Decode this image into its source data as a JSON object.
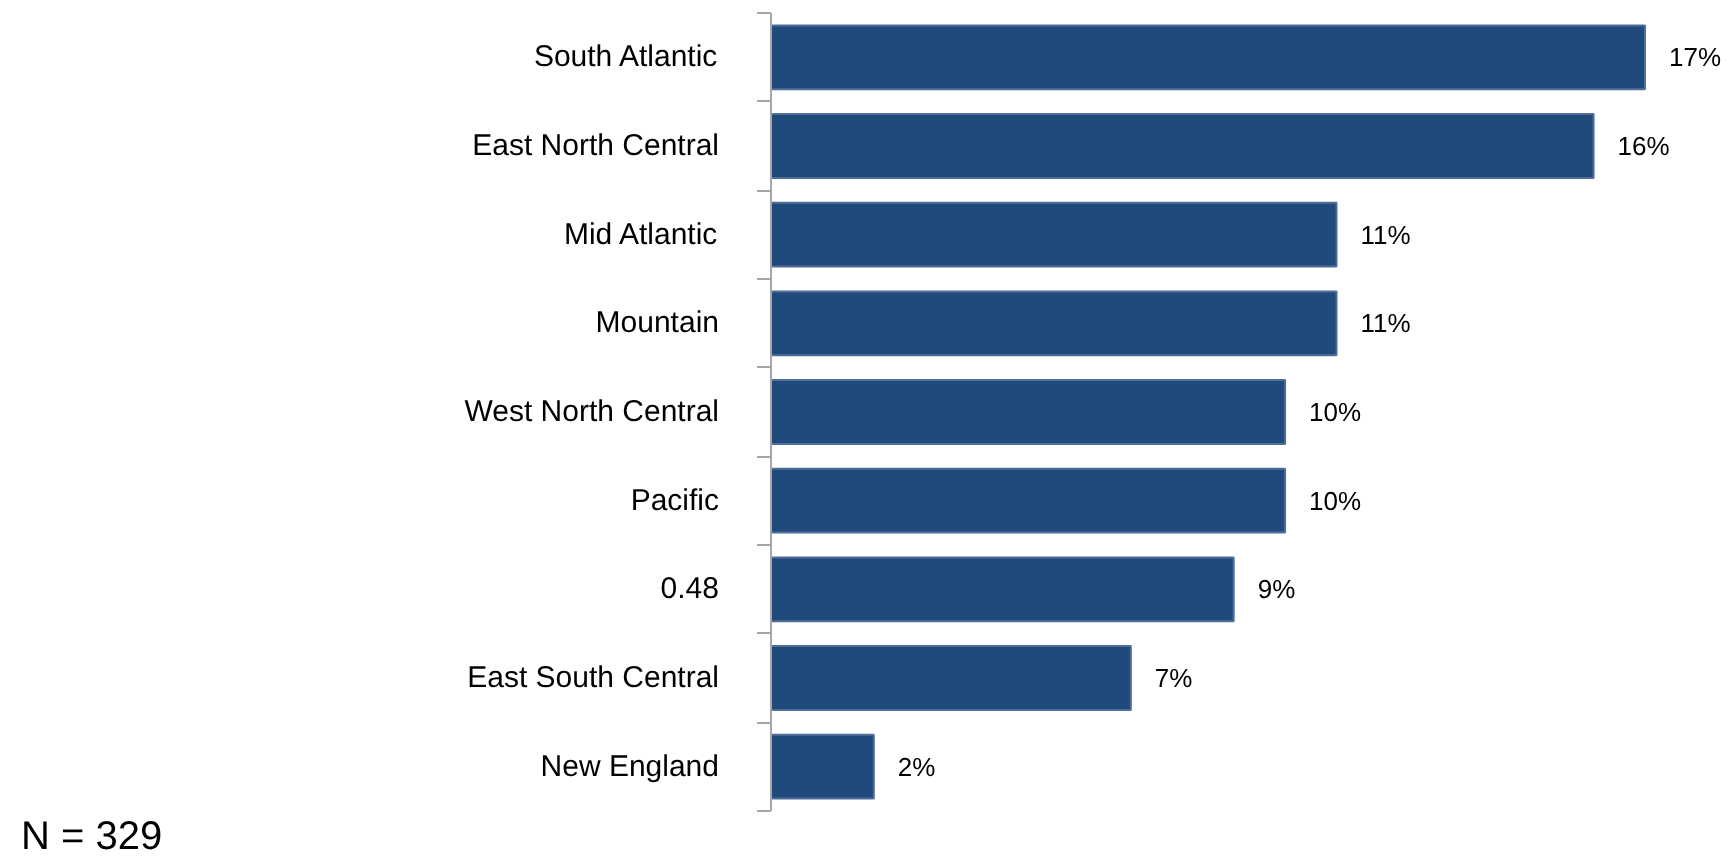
{
  "chart_data": {
    "type": "bar",
    "orientation": "horizontal",
    "categories": [
      "South Atlantic",
      "East North Central",
      "Mid Atlantic",
      "Mountain",
      "West North Central",
      "Pacific",
      "0.48",
      "East South Central",
      "New England"
    ],
    "values": [
      17,
      16,
      11,
      11,
      10,
      10,
      9,
      7,
      2
    ],
    "value_labels": [
      "17%",
      "16%",
      "11%",
      "11%",
      "10%",
      "10%",
      "9%",
      "7%",
      "2%"
    ],
    "color": "#214a7c",
    "grid": false,
    "annotations": [
      "N = 329"
    ]
  }
}
